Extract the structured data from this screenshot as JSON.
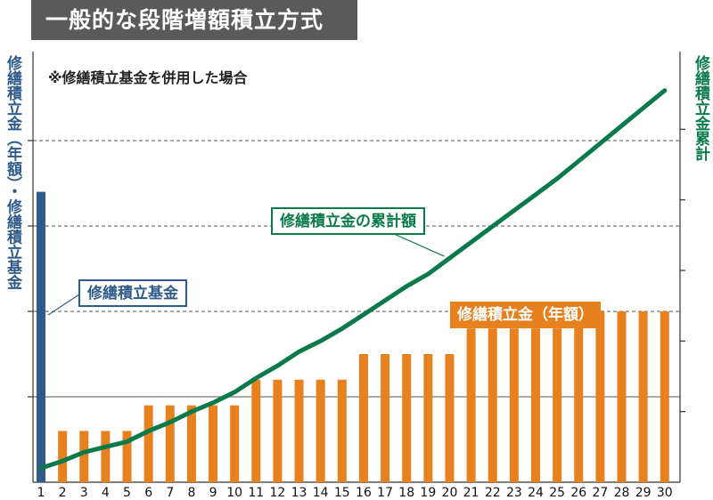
{
  "title": "一般的な段階増額積立方式",
  "subtitle": "※修繕積立基金を併用した場合",
  "left_axis_label": "修繕積立金（年額）・修繕積立基金",
  "right_axis_label": "修繕積立金累計",
  "callouts": {
    "fund": "修繕積立基金",
    "cumulative": "修繕積立金の累計額",
    "annual": "修繕積立金（年額）"
  },
  "colors": {
    "fund": "#2f5b8a",
    "annual": "#e6811e",
    "cumulative": "#0b7a4b",
    "title_bg": "#5a5a5a"
  },
  "chart_data": {
    "type": "bar",
    "x": [
      1,
      2,
      3,
      4,
      5,
      6,
      7,
      8,
      9,
      10,
      11,
      12,
      13,
      14,
      15,
      16,
      17,
      18,
      19,
      20,
      21,
      22,
      23,
      24,
      25,
      26,
      27,
      28,
      29,
      30
    ],
    "series": [
      {
        "name": "修繕積立基金",
        "type": "bar",
        "axis": "left",
        "values": [
          3.4,
          0,
          0,
          0,
          0,
          0,
          0,
          0,
          0,
          0,
          0,
          0,
          0,
          0,
          0,
          0,
          0,
          0,
          0,
          0,
          0,
          0,
          0,
          0,
          0,
          0,
          0,
          0,
          0,
          0
        ]
      },
      {
        "name": "修繕積立金（年額）",
        "type": "bar",
        "axis": "left",
        "values": [
          0,
          0.6,
          0.6,
          0.6,
          0.6,
          0.9,
          0.9,
          0.9,
          0.9,
          0.9,
          1.2,
          1.2,
          1.2,
          1.2,
          1.2,
          1.5,
          1.5,
          1.5,
          1.5,
          1.5,
          1.8,
          1.8,
          1.8,
          1.8,
          1.8,
          2.0,
          2.0,
          2.0,
          2.0,
          2.0
        ]
      },
      {
        "name": "修繕積立金の累計額",
        "type": "line",
        "axis": "right",
        "values": [
          0.4,
          0.6,
          0.85,
          1.0,
          1.15,
          1.45,
          1.7,
          2.0,
          2.25,
          2.55,
          2.95,
          3.3,
          3.7,
          4.0,
          4.35,
          4.75,
          5.15,
          5.55,
          5.9,
          6.35,
          6.8,
          7.25,
          7.7,
          8.15,
          8.6,
          9.1,
          9.6,
          10.1,
          10.6,
          11.1
        ]
      }
    ],
    "ylim_left": [
      0,
      5.0
    ],
    "ylim_right": [
      0,
      12.1
    ],
    "grid": "dashed horizontal"
  }
}
